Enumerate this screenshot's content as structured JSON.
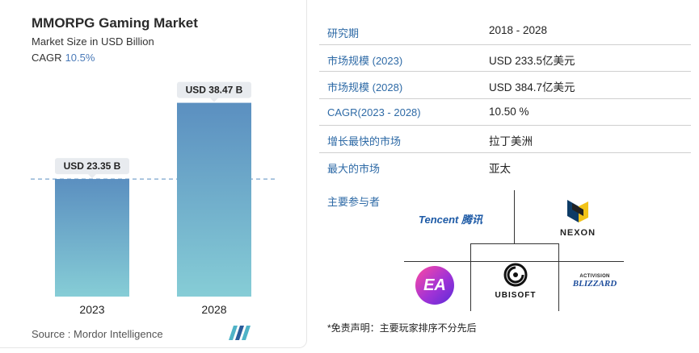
{
  "chart": {
    "title": "MMORPG Gaming Market",
    "subtitle": "Market Size in USD Billion",
    "cagr_label": "CAGR",
    "cagr_value": "10.5%",
    "source": "Source : Mordor Intelligence"
  },
  "chart_data": {
    "type": "bar",
    "title": "MMORPG Gaming Market",
    "ylabel": "Market Size in USD Billion",
    "categories": [
      "2023",
      "2028"
    ],
    "values": [
      23.35,
      38.47
    ],
    "data_labels": [
      "USD 23.35 B",
      "USD 38.47 B"
    ],
    "reference_line": 23.35,
    "ylim": [
      0,
      40
    ],
    "grid": false,
    "legend": "none",
    "colors": {
      "bar_top": "#5b8fc0",
      "bar_bottom": "#86cdd6",
      "reference_line": "#5b8fc0",
      "label_bg": "#e8ebef"
    }
  },
  "info": {
    "rows": [
      {
        "label": "研究期",
        "value": "2018 - 2028"
      },
      {
        "label": "市场规模 (2023)",
        "value": "USD 233.5亿美元"
      },
      {
        "label": "市场规模 (2028)",
        "value": "USD 384.7亿美元"
      },
      {
        "label": "CAGR(2023 - 2028)",
        "value": "10.50 %"
      },
      {
        "label": "增长最快的市场",
        "value": "拉丁美洲"
      },
      {
        "label": "最大的市场",
        "value": "亚太"
      }
    ],
    "players_title": "主要参与者",
    "disclaimer": "*免责声明：主要玩家排序不分先后"
  },
  "players": {
    "tencent": "Tencent 腾讯",
    "nexon": "NEXON",
    "ea": "EA",
    "ubisoft": "UBISOFT",
    "activision": "ACTIVISION",
    "blizzard": "BLIZZARD"
  },
  "colors": {
    "accent_text": "#2e6aa6",
    "cagr_value": "#4a7ab8"
  }
}
